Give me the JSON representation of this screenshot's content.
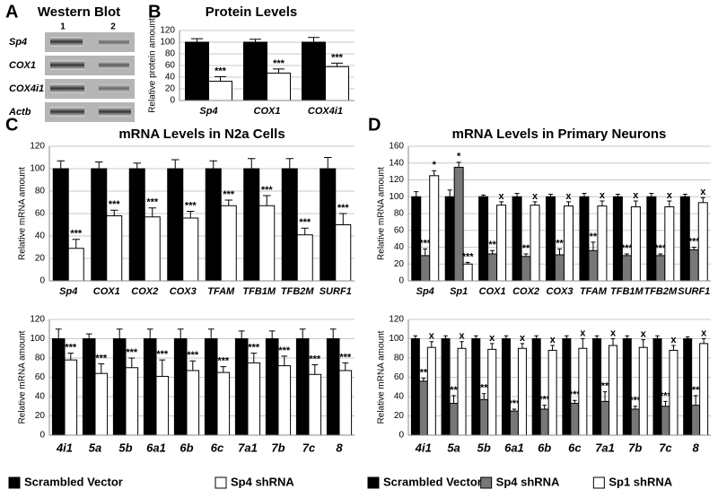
{
  "western_blot": {
    "panel": "A",
    "title": "Western Blot",
    "lanes": [
      "1",
      "2"
    ],
    "rows": [
      "Sp4",
      "COX1",
      "COX4i1",
      "Actb"
    ]
  },
  "chart_data": [
    {
      "type": "bar",
      "panel": "B",
      "title": "Protein Levels",
      "y_label": "Relative protein amount",
      "categories": [
        "Sp4",
        "COX1",
        "COX4i1"
      ],
      "series": [
        {
          "color": "#000000",
          "values": [
            100,
            100,
            100
          ],
          "errors": [
            6,
            5,
            8
          ]
        },
        {
          "color": "#ffffff",
          "values": [
            33,
            47,
            58
          ],
          "errors": [
            8,
            7,
            6
          ],
          "significance": [
            "***",
            "***",
            "***"
          ]
        }
      ],
      "ylim": [
        0,
        120
      ],
      "yticks": [
        0,
        20,
        40,
        60,
        80,
        100,
        120
      ],
      "grid": true
    },
    {
      "type": "bar",
      "panel": "C",
      "title": "mRNA Levels in N2a Cells",
      "y_label": "Relative mRNA amount",
      "categories": [
        "Sp4",
        "COX1",
        "COX2",
        "COX3",
        "TFAM",
        "TFB1M",
        "TFB2M",
        "SURF1"
      ],
      "series": [
        {
          "color": "#000000",
          "values": [
            100,
            100,
            100,
            100,
            100,
            100,
            100,
            100
          ],
          "errors": [
            7,
            6,
            5,
            8,
            7,
            9,
            9,
            10
          ]
        },
        {
          "color": "#ffffff",
          "values": [
            29,
            58,
            57,
            56,
            67,
            67,
            41,
            50
          ],
          "errors": [
            8,
            5,
            8,
            6,
            5,
            9,
            6,
            10
          ],
          "significance": [
            "***",
            "***",
            "***",
            "***",
            "***",
            "***",
            "***",
            "***"
          ]
        }
      ],
      "ylim": [
        0,
        120
      ],
      "yticks": [
        0,
        20,
        40,
        60,
        80,
        100,
        120
      ],
      "grid": true
    },
    {
      "type": "bar",
      "y_label": "Relative mRNA amount",
      "categories": [
        "4i1",
        "5a",
        "5b",
        "6a1",
        "6b",
        "6c",
        "7a1",
        "7b",
        "7c",
        "8"
      ],
      "series": [
        {
          "name": "Scrambled Vector",
          "color": "#000000",
          "values": [
            100,
            100,
            100,
            100,
            100,
            100,
            100,
            100,
            100,
            100
          ],
          "errors": [
            10,
            5,
            10,
            10,
            10,
            10,
            8,
            8,
            10,
            10
          ]
        },
        {
          "name": "Sp4 shRNA",
          "color": "#ffffff",
          "values": [
            78,
            64,
            70,
            61,
            67,
            65,
            75,
            72,
            63,
            67
          ],
          "errors": [
            7,
            10,
            10,
            17,
            10,
            6,
            10,
            10,
            10,
            8
          ],
          "significance": [
            "***",
            "***",
            "***",
            "***",
            "***",
            "***",
            "***",
            "***",
            "***",
            "***"
          ]
        }
      ],
      "ylim": [
        0,
        120
      ],
      "yticks": [
        0,
        20,
        40,
        60,
        80,
        100,
        120
      ],
      "grid": true,
      "legend": "bottom"
    },
    {
      "type": "bar",
      "panel": "D",
      "title": "mRNA Levels in Primary Neurons",
      "y_label": "Relative mRNA amount",
      "categories": [
        "Sp4",
        "Sp1",
        "COX1",
        "COX2",
        "COX3",
        "TFAM",
        "TFB1M",
        "TFB2M",
        "SURF1"
      ],
      "series": [
        {
          "color": "#000000",
          "values": [
            100,
            100,
            100,
            100,
            100,
            100,
            100,
            100,
            100
          ],
          "errors": [
            6,
            8,
            2,
            4,
            3,
            4,
            3,
            4,
            3
          ]
        },
        {
          "color": "#777777",
          "values": [
            30,
            135,
            32,
            29,
            31,
            36,
            30,
            30,
            37
          ],
          "errors": [
            8,
            6,
            4,
            3,
            7,
            10,
            2,
            2,
            3
          ],
          "significance": [
            "***",
            "*",
            "**",
            "**",
            "**",
            "**",
            "***",
            "***",
            "***"
          ]
        },
        {
          "color": "#ffffff",
          "values": [
            125,
            20,
            90,
            90,
            89,
            89,
            88,
            88,
            93
          ],
          "errors": [
            6,
            2,
            4,
            4,
            5,
            6,
            7,
            7,
            6
          ],
          "significance": [
            "*",
            "***",
            "x",
            "x",
            "x",
            "x",
            "x",
            "x",
            "x"
          ]
        }
      ],
      "ylim": [
        0,
        160
      ],
      "yticks": [
        0,
        20,
        40,
        60,
        80,
        100,
        120,
        140,
        160
      ],
      "grid": true
    },
    {
      "type": "bar",
      "y_label": "Relative mRNA amount",
      "categories": [
        "4i1",
        "5a",
        "5b",
        "6a1",
        "6b",
        "6c",
        "7a1",
        "7b",
        "7c",
        "8"
      ],
      "series": [
        {
          "name": "Scrambled Vector",
          "color": "#000000",
          "values": [
            100,
            100,
            100,
            100,
            100,
            100,
            100,
            100,
            100,
            100
          ],
          "errors": [
            3,
            3,
            3,
            3,
            3,
            3,
            3,
            3,
            3,
            2
          ]
        },
        {
          "name": "Sp4 shRNA",
          "color": "#777777",
          "values": [
            56,
            33,
            37,
            25,
            27,
            33,
            35,
            27,
            30,
            31
          ],
          "errors": [
            3,
            8,
            6,
            2,
            4,
            3,
            10,
            3,
            5,
            10
          ],
          "significance": [
            "**",
            "**",
            "**",
            "***",
            "***",
            "***",
            "**",
            "***",
            "***",
            "**"
          ]
        },
        {
          "name": "Sp1 shRNA",
          "color": "#ffffff",
          "values": [
            91,
            90,
            89,
            90,
            88,
            90,
            93,
            91,
            88,
            95
          ],
          "errors": [
            6,
            7,
            6,
            5,
            5,
            10,
            7,
            8,
            5,
            5
          ],
          "significance": [
            "x",
            "x",
            "x",
            "x",
            "x",
            "x",
            "x",
            "x",
            "x",
            "x"
          ]
        }
      ],
      "ylim": [
        0,
        120
      ],
      "yticks": [
        0,
        20,
        40,
        60,
        80,
        100,
        120
      ],
      "grid": true,
      "legend": "bottom"
    }
  ]
}
